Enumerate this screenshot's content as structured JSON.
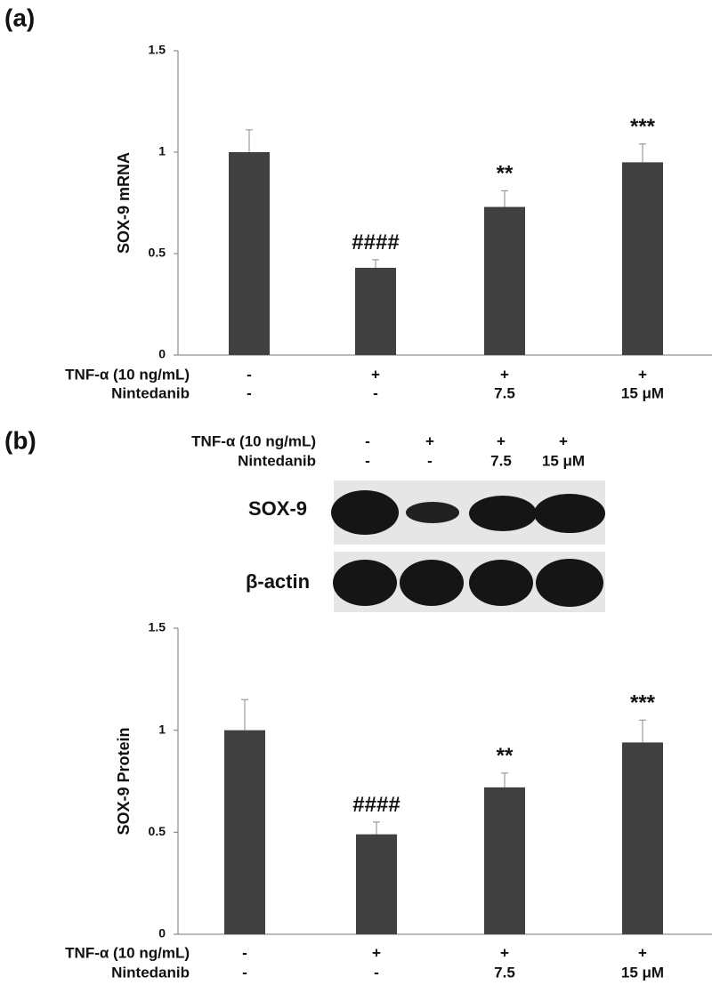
{
  "chart_data": [
    {
      "type": "bar",
      "panel_label": "(a)",
      "ylabel": "SOX-9 mRNA",
      "color": "#404040",
      "conditions": [
        {
          "name": "TNF-α (10 ng/mL)",
          "levels": [
            "-",
            "+",
            "+",
            "+"
          ]
        },
        {
          "name": "Nintedanib",
          "levels": [
            "-",
            "-",
            "7.5",
            "15 μM"
          ]
        }
      ],
      "values": [
        1.0,
        0.43,
        0.73,
        0.95
      ],
      "errors": [
        0.11,
        0.04,
        0.08,
        0.09
      ],
      "annotations": [
        null,
        "####",
        "**",
        "***"
      ],
      "ylim": [
        0,
        1.5
      ],
      "yticks": [
        0,
        0.5,
        1,
        1.5
      ]
    },
    {
      "type": "bar",
      "panel_label": "(b)",
      "ylabel": "SOX-9 Protein",
      "color": "#404040",
      "blot": {
        "conditions": [
          {
            "name": "TNF-α (10 ng/mL)",
            "levels": [
              "-",
              "+",
              "+",
              "+"
            ]
          },
          {
            "name": "Nintedanib",
            "levels": [
              "-",
              "-",
              "7.5",
              "15 μM"
            ]
          }
        ],
        "rows": [
          "SOX-9",
          "β-actin"
        ]
      },
      "conditions": [
        {
          "name": "TNF-α (10 ng/mL)",
          "levels": [
            "-",
            "+",
            "+",
            "+"
          ]
        },
        {
          "name": "Nintedanib",
          "levels": [
            "-",
            "-",
            "7.5",
            "15 μM"
          ]
        }
      ],
      "values": [
        1.0,
        0.49,
        0.72,
        0.94
      ],
      "errors": [
        0.15,
        0.06,
        0.07,
        0.11
      ],
      "annotations": [
        null,
        "####",
        "**",
        "***"
      ],
      "ylim": [
        0,
        1.5
      ],
      "yticks": [
        0,
        0.5,
        1,
        1.5
      ]
    }
  ]
}
